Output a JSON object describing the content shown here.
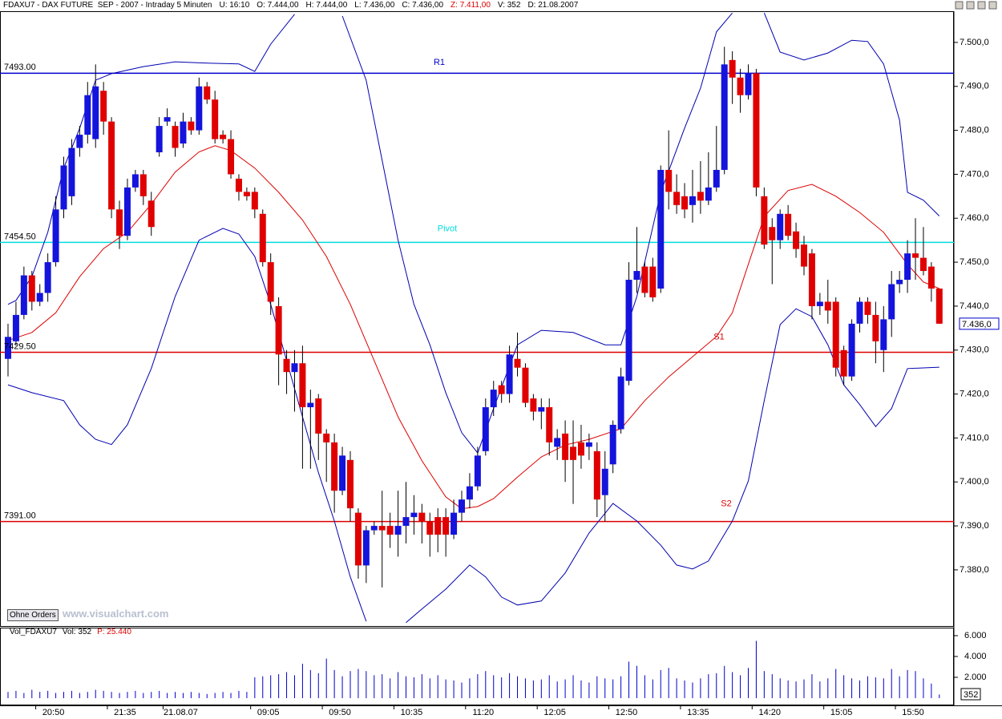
{
  "chart_data": {
    "type": "candlestick",
    "header": [
      {
        "text": "FDAXU7 - DAX FUTURE  SEP - 2007 - Intraday 5 Minuten",
        "color": "#000000"
      },
      {
        "text": "U: 16:10",
        "color": "#000000"
      },
      {
        "text": "O: 7.444,00",
        "color": "#000000"
      },
      {
        "text": "H: 7.444,00",
        "color": "#000000"
      },
      {
        "text": "L: 7.436,00",
        "color": "#000000"
      },
      {
        "text": "C: 7.436,00",
        "color": "#000000"
      },
      {
        "text": "Z: 7.411,00",
        "color": "#dd0000"
      },
      {
        "text": "V: 352",
        "color": "#000000"
      },
      {
        "text": "D: 21.08.2007",
        "color": "#000000"
      }
    ],
    "volume_header": [
      {
        "text": "Vol_FDAXU7",
        "color": "#000000"
      },
      {
        "text": "Vol: 352",
        "color": "#000000"
      },
      {
        "text": "P: 25.440",
        "color": "#dd0000"
      }
    ],
    "button": "Ohne Orders",
    "watermark": "www.visualchart.com",
    "categories": [
      null,
      null,
      null,
      null,
      null,
      null,
      "20:50",
      null,
      null,
      null,
      null,
      null,
      null,
      null,
      null,
      "21:35",
      null,
      null,
      null,
      null,
      null,
      null,
      "21.08.07",
      null,
      null,
      null,
      null,
      null,
      null,
      null,
      null,
      null,
      null,
      "09:05",
      null,
      null,
      null,
      null,
      null,
      null,
      null,
      null,
      "09:50",
      null,
      null,
      null,
      null,
      null,
      null,
      null,
      null,
      "10:35",
      null,
      null,
      null,
      null,
      null,
      null,
      null,
      null,
      "11:20",
      null,
      null,
      null,
      null,
      null,
      null,
      null,
      null,
      "12:05",
      null,
      null,
      null,
      null,
      null,
      null,
      null,
      null,
      "12:50",
      null,
      null,
      null,
      null,
      null,
      null,
      null,
      null,
      "13:35",
      null,
      null,
      null,
      null,
      null,
      null,
      null,
      null,
      "14:20",
      null,
      null,
      null,
      null,
      null,
      null,
      null,
      null,
      "15:05",
      null,
      null,
      null,
      null,
      null,
      null,
      null,
      null,
      "15:50",
      null,
      null,
      null
    ],
    "open": [
      7428,
      7432,
      7438,
      7447,
      7441,
      7443,
      7450,
      7462,
      7465,
      7476,
      7479,
      7478,
      7489,
      7482,
      7462,
      7456,
      7467,
      7470,
      7464,
      7475,
      7482,
      7481,
      7477,
      7482,
      7480,
      7490,
      7487,
      7479,
      7478,
      7469,
      7466,
      7466,
      7461,
      7450,
      7440,
      7428,
      7425,
      7427,
      7417,
      7419,
      7411,
      7409,
      7398,
      7405,
      7393,
      7381,
      7389,
      7390,
      7390,
      7388,
      7390,
      7392,
      7393,
      7391,
      7392,
      7392,
      7388,
      7393,
      7396,
      7399,
      7407,
      7417,
      7422,
      7420,
      7428,
      7426,
      7419,
      7416,
      7417,
      7408,
      7411,
      7408,
      7409,
      7408,
      7407,
      7397,
      7404,
      7412,
      7423,
      7446,
      7449,
      7449,
      7444,
      7471,
      7466,
      7465,
      7463,
      7466,
      7464,
      7467,
      7471,
      7496,
      7492,
      7488,
      7493,
      7465,
      7458,
      7455,
      7461,
      7457,
      7454,
      7452,
      7440,
      7441,
      7441,
      7430,
      7424,
      7436,
      7441,
      7438,
      7430,
      7437,
      7445,
      7446,
      7452,
      7451,
      7449,
      7444
    ],
    "high": [
      7436,
      7441,
      7449,
      7448,
      7445,
      7452,
      7465,
      7474,
      7478,
      7481,
      7491,
      7495,
      7491,
      7483,
      7464,
      7469,
      7471,
      7471,
      7466,
      7483,
      7485,
      7482,
      7484,
      7483,
      7492,
      7491,
      7489,
      7480,
      7480,
      7470,
      7467,
      7467,
      7462,
      7452,
      7442,
      7430,
      7430,
      7431,
      7421,
      7420,
      7412,
      7411,
      7408,
      7407,
      7394,
      7390,
      7391,
      7398,
      7393,
      7398,
      7400,
      7397,
      7395,
      7393,
      7394,
      7394,
      7396,
      7398,
      7402,
      7408,
      7419,
      7423,
      7423,
      7431,
      7434,
      7427,
      7420,
      7419,
      7419,
      7412,
      7414,
      7414,
      7413,
      7411,
      7409,
      7407,
      7414,
      7426,
      7450,
      7458,
      7450,
      7451,
      7472,
      7480,
      7470,
      7468,
      7471,
      7473,
      7475,
      7481,
      7499,
      7498,
      7494,
      7495,
      7494,
      7467,
      7460,
      7462,
      7463,
      7459,
      7456,
      7453,
      7443,
      7446,
      7442,
      7431,
      7437,
      7442,
      7442,
      7441,
      7440,
      7448,
      7448,
      7455,
      7460,
      7458,
      7450,
      7444
    ],
    "low": [
      7424,
      7431,
      7437,
      7439,
      7440,
      7441,
      7449,
      7460,
      7463,
      7474,
      7477,
      7476,
      7479,
      7460,
      7453,
      7455,
      7466,
      7463,
      7456,
      7474,
      7481,
      7474,
      7476,
      7479,
      7479,
      7486,
      7477,
      7477,
      7469,
      7464,
      7464,
      7460,
      7449,
      7438,
      7422,
      7420,
      7416,
      7403,
      7403,
      7405,
      7400,
      7393,
      7397,
      7391,
      7378,
      7377,
      7388,
      7376,
      7385,
      7383,
      7386,
      7388,
      7386,
      7383,
      7384,
      7383,
      7387,
      7391,
      7394,
      7398,
      7406,
      7415,
      7418,
      7418,
      7424,
      7417,
      7414,
      7412,
      7406,
      7405,
      7400,
      7395,
      7403,
      7405,
      7392,
      7391,
      7402,
      7411,
      7422,
      7443,
      7442,
      7441,
      7443,
      7462,
      7461,
      7460,
      7459,
      7461,
      7463,
      7466,
      7470,
      7486,
      7484,
      7487,
      7465,
      7453,
      7445,
      7453,
      7455,
      7451,
      7447,
      7437,
      7438,
      7436,
      7424,
      7422,
      7423,
      7434,
      7436,
      7427,
      7425,
      7433,
      7443,
      7443,
      7446,
      7447,
      7441,
      7436
    ],
    "close": [
      7433,
      7438,
      7447,
      7441,
      7443,
      7450,
      7462,
      7472,
      7476,
      7479,
      7488,
      7490,
      7482,
      7462,
      7456,
      7467,
      7470,
      7465,
      7458,
      7481,
      7483,
      7476,
      7482,
      7480,
      7490,
      7487,
      7478,
      7478,
      7470,
      7466,
      7465,
      7462,
      7450,
      7441,
      7429,
      7425,
      7427,
      7417,
      7418,
      7411,
      7409,
      7398,
      7406,
      7394,
      7381,
      7389,
      7390,
      7389,
      7388,
      7390,
      7392,
      7393,
      7391,
      7388,
      7388,
      7388,
      7393,
      7396,
      7399,
      7406,
      7417,
      7421,
      7420,
      7429,
      7426,
      7418,
      7416,
      7417,
      7409,
      7410,
      7405,
      7405,
      7406,
      7409,
      7396,
      7403,
      7413,
      7424,
      7446,
      7448,
      7443,
      7442,
      7471,
      7466,
      7463,
      7462,
      7465,
      7464,
      7467,
      7471,
      7495,
      7492,
      7488,
      7493,
      7467,
      7454,
      7455,
      7461,
      7456,
      7453,
      7449,
      7440,
      7441,
      7439,
      7426,
      7424,
      7436,
      7441,
      7438,
      7432,
      7437,
      7445,
      7446,
      7452,
      7451,
      7448,
      7444,
      7436
    ],
    "up_color": "#1414dc",
    "down_color": "#e00000",
    "ylim": [
      7367.4,
      7507.1
    ],
    "yticks": [
      {
        "value": 7380,
        "label": "7.380,0"
      },
      {
        "value": 7390,
        "label": "7.390,0"
      },
      {
        "value": 7400,
        "label": "7.400,0"
      },
      {
        "value": 7410,
        "label": "7.410,0"
      },
      {
        "value": 7420,
        "label": "7.420,0"
      },
      {
        "value": 7430,
        "label": "7.430,0"
      },
      {
        "value": 7440,
        "label": "7.440,0"
      },
      {
        "value": 7450,
        "label": "7.450,0"
      },
      {
        "value": 7460,
        "label": "7.460,0"
      },
      {
        "value": 7470,
        "label": "7.470,0"
      },
      {
        "value": 7480,
        "label": "7.480,0"
      },
      {
        "value": 7490,
        "label": "7.490,0"
      },
      {
        "value": 7500,
        "label": "7.500,0"
      }
    ],
    "last_price": {
      "value": 7436,
      "label": "7.436,0"
    },
    "levels": [
      {
        "name": "R1",
        "value": 7493,
        "label": "7493.00",
        "color": "#0000cc"
      },
      {
        "name": "Pivot",
        "value": 7454.5,
        "label": "7454.50",
        "color": "#00dddd"
      },
      {
        "name": "S1",
        "value": 7429.5,
        "label": "7429.50",
        "color": "#dd0000"
      },
      {
        "name": "S2",
        "value": 7391,
        "label": "7391.00",
        "color": "#dd0000"
      }
    ],
    "lines": [
      {
        "color": "#0000b0",
        "x": [
          0,
          1,
          3,
          5,
          7,
          9,
          11,
          13,
          17,
          21,
          25,
          29,
          31,
          33,
          36,
          37,
          42,
          45,
          47,
          49,
          51,
          53,
          55,
          57,
          59,
          61,
          64,
          67,
          71,
          75,
          77,
          79,
          82,
          85,
          87,
          89,
          91,
          92,
          95,
          97,
          100,
          103,
          106,
          108,
          110,
          112,
          113,
          115,
          117
        ],
        "values": [
          7440.4,
          7441.3,
          7446.7,
          7456.8,
          7471.4,
          7480.5,
          7491.4,
          7492.9,
          7494.5,
          7495.6,
          7495.3,
          7495.1,
          7493.4,
          7499.6,
          7506.4,
          null,
          7506.0,
          7491.4,
          7473.2,
          7455.0,
          7440.4,
          7431.2,
          7420.3,
          7411.2,
          7406.6,
          7416.7,
          7431.2,
          7434.5,
          7434.0,
          7431.2,
          7431.2,
          7442.2,
          7465.9,
          7480.5,
          7489.6,
          7502.4,
          7506.7,
          null,
          7506.7,
          7497.8,
          7496.0,
          7497.6,
          7500.5,
          7500.2,
          7495.1,
          7482.3,
          7465.9,
          7464.1,
          7460.5
        ]
      },
      {
        "color": "#0000b0",
        "x": [
          0,
          3,
          7,
          9,
          11,
          13,
          15,
          18,
          21,
          24,
          27,
          29,
          31,
          33,
          35,
          37,
          39,
          41,
          43,
          45,
          46,
          50,
          52,
          55,
          58,
          60,
          62,
          64,
          67,
          70,
          73,
          76,
          79,
          82,
          84,
          86,
          88,
          91,
          93,
          95,
          97,
          99,
          101,
          103,
          105,
          107,
          109,
          111,
          113,
          117
        ],
        "values": [
          7422.1,
          7420.3,
          7418.5,
          7413.0,
          7409.7,
          7408.5,
          7413.0,
          7425.8,
          7442.2,
          7455.0,
          7457.7,
          7456.4,
          7451.3,
          7440.4,
          7427.6,
          7414.8,
          7402.1,
          7391.1,
          7378.4,
          7368.3,
          null,
          7368.0,
          7371.1,
          7375.6,
          7381.1,
          7378.4,
          7373.8,
          7372.0,
          7372.9,
          7379.3,
          7388.4,
          7395.1,
          7391.1,
          7385.6,
          7381.1,
          7380.2,
          7382.0,
          7391.1,
          7400.2,
          7418.5,
          7435.8,
          7439.4,
          7437.6,
          7431.2,
          7422.1,
          7417.6,
          7412.6,
          7416.7,
          7425.8,
          7426.1
        ]
      },
      {
        "color": "#dd0000",
        "x": [
          0,
          3,
          6,
          9,
          12,
          15,
          18,
          21,
          24,
          26,
          28,
          31,
          34,
          37,
          40,
          43,
          46,
          49,
          52,
          55,
          57,
          59,
          61,
          64,
          67,
          70,
          73,
          77,
          80,
          83,
          86,
          89,
          91,
          93,
          95,
          98,
          101,
          104,
          107,
          110,
          113,
          115,
          117
        ],
        "values": [
          7432.2,
          7434.0,
          7438.5,
          7446.7,
          7453.1,
          7456.8,
          7463.2,
          7470.5,
          7475.1,
          7476.5,
          7475.4,
          7471.4,
          7465.9,
          7459.6,
          7451.3,
          7440.4,
          7427.6,
          7414.8,
          7404.8,
          7396.6,
          7393.9,
          7394.4,
          7396.2,
          7401.1,
          7405.7,
          7408.4,
          7409.7,
          7412.1,
          7418.5,
          7423.9,
          7428.5,
          7433.1,
          7438.5,
          7449.5,
          7460.4,
          7466.3,
          7467.7,
          7465.0,
          7461.3,
          7456.8,
          7449.5,
          7445.5,
          7444.0
        ]
      }
    ],
    "volume": [
      600,
      700,
      500,
      800,
      600,
      700,
      500,
      600,
      700,
      500,
      600,
      800,
      700,
      600,
      500,
      600,
      700,
      500,
      600,
      700,
      500,
      600,
      500,
      600,
      500,
      400,
      500,
      600,
      500,
      700,
      600,
      2000,
      2100,
      2200,
      2300,
      2500,
      2200,
      3300,
      2700,
      2400,
      3800,
      2700,
      2100,
      2600,
      2800,
      2600,
      2200,
      2300,
      1900,
      2500,
      2100,
      2000,
      2300,
      1900,
      2200,
      1800,
      1700,
      1500,
      1900,
      2300,
      2600,
      2200,
      2000,
      2400,
      2100,
      1900,
      1700,
      1800,
      2200,
      1600,
      1800,
      2200,
      1700,
      1500,
      2100,
      1900,
      1800,
      2100,
      3500,
      3100,
      2200,
      1800,
      2700,
      2900,
      1900,
      1700,
      1500,
      1900,
      2300,
      2400,
      3100,
      2500,
      2200,
      2900,
      5500,
      2600,
      2300,
      1900,
      1700,
      1600,
      1800,
      2300,
      1600,
      1900,
      2800,
      2200,
      1900,
      1700,
      2100,
      2000,
      1900,
      2800,
      2100,
      2700,
      2600,
      1900,
      1400,
      352
    ],
    "volume_color": "#0000cc",
    "volume_ylim": [
      0,
      6000
    ],
    "volume_ticks": [
      {
        "value": 2000,
        "label": "2.000"
      },
      {
        "value": 4000,
        "label": "4.000"
      },
      {
        "value": 6000,
        "label": "6.000"
      }
    ]
  }
}
